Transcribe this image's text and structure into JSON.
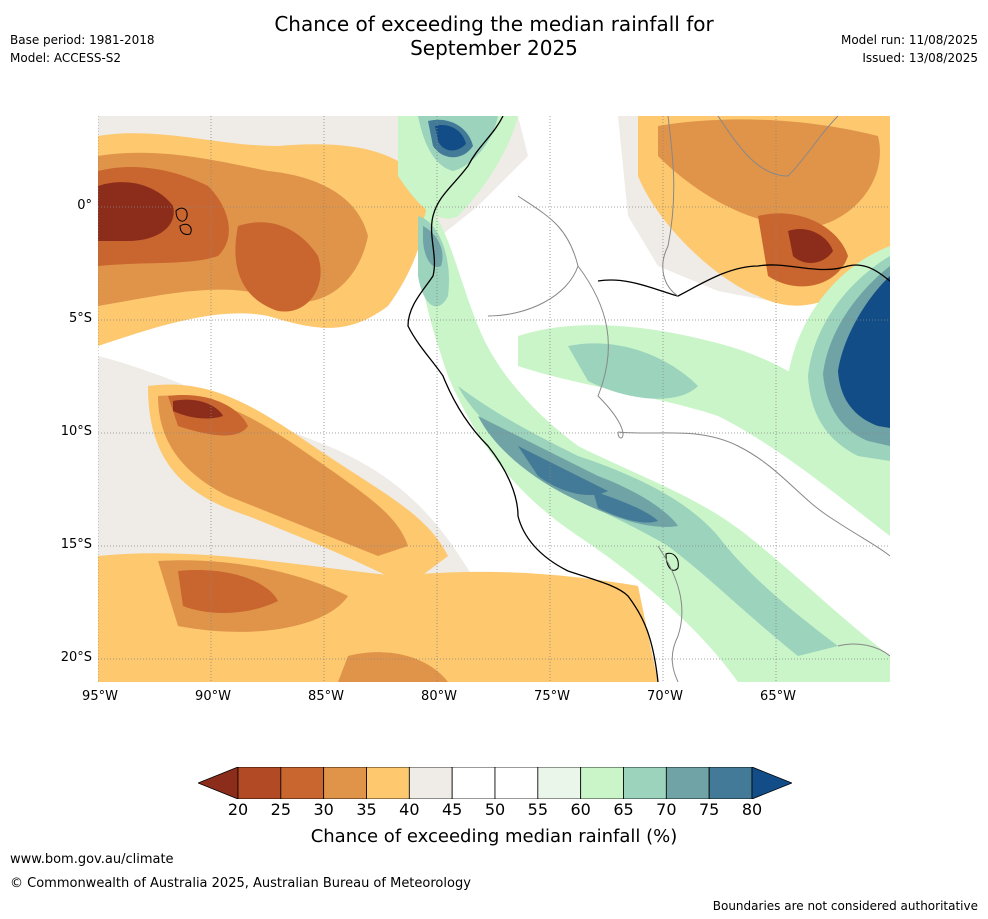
{
  "header": {
    "base_period": "Base period: 1981-2018",
    "model": "Model: ACCESS-S2",
    "title_line1": "Chance of exceeding the median rainfall for",
    "title_line2": "September 2025",
    "model_run": "Model run: 11/08/2025",
    "issued": "Issued: 13/08/2025"
  },
  "map": {
    "lat_labels": [
      "0°",
      "5°S",
      "10°S",
      "15°S",
      "20°S"
    ],
    "lon_labels": [
      "95°W",
      "90°W",
      "85°W",
      "80°W",
      "75°W",
      "70°W",
      "65°W"
    ]
  },
  "colorbar": {
    "ticks": [
      "20",
      "25",
      "30",
      "35",
      "40",
      "45",
      "50",
      "55",
      "60",
      "65",
      "70",
      "75",
      "80"
    ],
    "colors": [
      "#8c2d1c",
      "#b24a25",
      "#c9652e",
      "#e0944a",
      "#fdc86e",
      "#efebe6",
      "#ffffff",
      "#ffffff",
      "#eaf6ea",
      "#c9f5c9",
      "#9bd3bd",
      "#6fa3a5",
      "#437a97",
      "#134d87"
    ],
    "title": "Chance of exceeding median rainfall (%)"
  },
  "footer": {
    "url": "www.bom.gov.au/climate",
    "copyright": "© Commonwealth of Australia 2025, Australian Bureau of Meteorology",
    "disclaimer": "Boundaries are not considered authoritative"
  }
}
